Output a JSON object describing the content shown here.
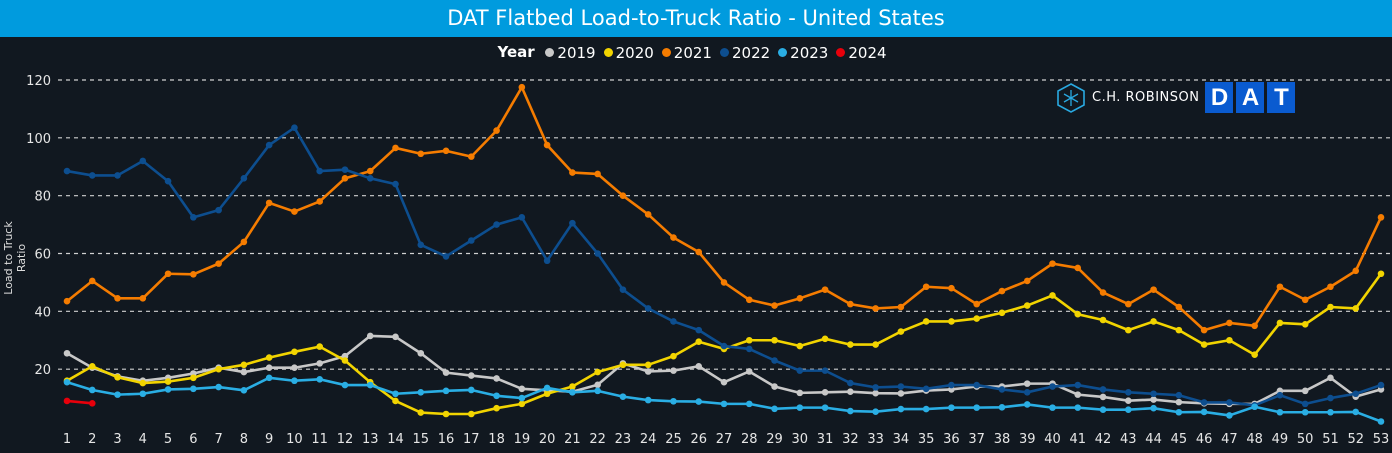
{
  "header": {
    "title": "DAT Flatbed Load-to-Truck Ratio - United States"
  },
  "legend": {
    "title": "Year"
  },
  "logo": {
    "company": "C.H. ROBINSON",
    "letters": [
      "D",
      "A",
      "T"
    ]
  },
  "chart_data": {
    "type": "line",
    "title": "DAT Flatbed Load-to-Truck Ratio - United States",
    "xlabel": "",
    "ylabel": "Load to Truck Ratio",
    "ylim": [
      0,
      120
    ],
    "yticks": [
      20,
      40,
      60,
      80,
      100,
      120
    ],
    "grid": true,
    "legend_position": "top-center",
    "x": [
      1,
      2,
      3,
      4,
      5,
      6,
      7,
      8,
      9,
      10,
      11,
      12,
      13,
      14,
      15,
      16,
      17,
      18,
      19,
      20,
      21,
      22,
      23,
      24,
      25,
      26,
      27,
      28,
      29,
      30,
      31,
      32,
      33,
      34,
      35,
      36,
      37,
      38,
      39,
      40,
      41,
      42,
      43,
      44,
      45,
      46,
      47,
      48,
      49,
      50,
      51,
      52,
      53
    ],
    "series": [
      {
        "name": "2019",
        "color": "#c8c8c8",
        "values": [
          25.5,
          20.5,
          17.5,
          16,
          17,
          18.5,
          20.5,
          19,
          20.5,
          20.5,
          22,
          24.5,
          31.5,
          31.2,
          25.5,
          18.8,
          17.8,
          16.8,
          13.2,
          12.7,
          12.2,
          14.6,
          22,
          19.2,
          19.5,
          21,
          15.5,
          19.2,
          14,
          11.8,
          12,
          12.2,
          11.7,
          11.6,
          12.6,
          13,
          14,
          14,
          15,
          15,
          11.2,
          10.4,
          9.1,
          9.5,
          8.6,
          8.2,
          8,
          8,
          12.5,
          12.5,
          17,
          10.5,
          13
        ]
      },
      {
        "name": "2020",
        "color": "#f2d400",
        "values": [
          16,
          21,
          17.2,
          15.2,
          15.7,
          17,
          20,
          21.5,
          24,
          26,
          27.8,
          23,
          15.5,
          9,
          5,
          4.5,
          4.5,
          6.5,
          8,
          11.5,
          14,
          19,
          21.5,
          21.5,
          24.5,
          29.5,
          27,
          30,
          30,
          28,
          30.5,
          28.5,
          28.5,
          33,
          36.5,
          36.5,
          37.5,
          39.5,
          42,
          45.5,
          39,
          37,
          33.5,
          36.5,
          33.5,
          28.5,
          30,
          25,
          36,
          35.5,
          41.5,
          41,
          53
        ]
      },
      {
        "name": "2021",
        "color": "#f57c00",
        "values": [
          43.5,
          50.5,
          44.5,
          44.5,
          53,
          52.8,
          56.5,
          64,
          77.5,
          74.5,
          78,
          86,
          88.5,
          96.5,
          94.5,
          95.5,
          93.5,
          102.5,
          117.5,
          97.5,
          88,
          87.5,
          80,
          73.5,
          65.5,
          60.5,
          50,
          44,
          42,
          44.5,
          47.5,
          42.5,
          41,
          41.5,
          48.5,
          48,
          42.5,
          47,
          50.5,
          56.5,
          55,
          46.5,
          42.5,
          47.5,
          41.5,
          33.5,
          36,
          35,
          48.5,
          44,
          48.5,
          54,
          72.5
        ]
      },
      {
        "name": "2022",
        "color": "#0d4e8f",
        "values": [
          88.5,
          87,
          87,
          92,
          85,
          72.5,
          75,
          86,
          97.5,
          103.5,
          88.5,
          89,
          86,
          84,
          63,
          59,
          64.5,
          70,
          72.5,
          57.5,
          70.5,
          60,
          47.5,
          41,
          36.5,
          33.5,
          28,
          27,
          23,
          19.5,
          19.5,
          15.2,
          13.7,
          14,
          13.2,
          14.5,
          14.5,
          13,
          12,
          14,
          14.5,
          13,
          12,
          11.5,
          11,
          8.5,
          8.5,
          7.5,
          11,
          8,
          10,
          11.5,
          14.5
        ]
      },
      {
        "name": "2023",
        "color": "#2aaee4",
        "values": [
          15.5,
          12.8,
          11.2,
          11.5,
          13,
          13.2,
          13.8,
          12.7,
          17,
          16,
          16.5,
          14.5,
          14.5,
          11.5,
          12,
          12.5,
          12.8,
          10.8,
          10,
          13.5,
          12,
          12.5,
          10.5,
          9.3,
          8.9,
          8.8,
          8,
          8,
          6.3,
          6.7,
          6.7,
          5.5,
          5.3,
          6.2,
          6.2,
          6.7,
          6.7,
          6.8,
          7.8,
          6.7,
          6.7,
          6,
          6,
          6.5,
          5.1,
          5.2,
          4,
          7,
          5.1,
          5.1,
          5.1,
          5.2,
          1.9
        ]
      },
      {
        "name": "2024",
        "color": "#e8000b",
        "values": [
          9,
          8.2
        ]
      }
    ]
  }
}
